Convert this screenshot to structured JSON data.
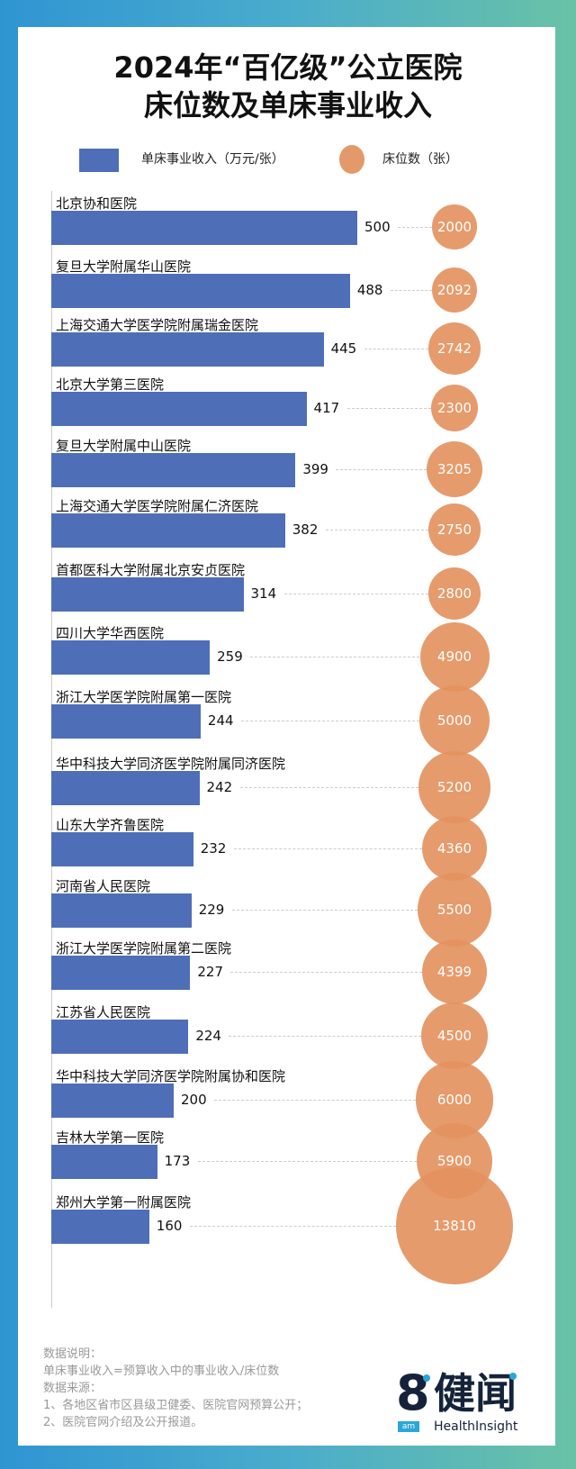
{
  "title": {
    "line1": "2024年“百亿级”公立医院",
    "line2": "床位数及单床事业收入"
  },
  "legend": {
    "bar_label": "单床事业收入（万元/张）",
    "circle_label": "床位数（张）",
    "bar_color": "#4e6fb8",
    "circle_color": "#e4996a"
  },
  "notes": {
    "line1": "数据说明：",
    "line2": "单床事业收入=预算收入中的事业收入/床位数",
    "line3": "数据来源：",
    "line4": "1、各地区省市区县级卫健委、医院官网预算公开；",
    "line5": "2、医院官网介绍及公开报道。"
  },
  "logo": {
    "mark": "8",
    "cn": "健闻",
    "am": "am",
    "en": "HealthInsight"
  },
  "chart_data": {
    "type": "bar",
    "title": "2024年“百亿级”公立医院床位数及单床事业收入",
    "orientation": "horizontal",
    "categories": [
      "北京协和医院",
      "复旦大学附属华山医院",
      "上海交通大学医学院附属瑞金医院",
      "北京大学第三医院",
      "复旦大学附属中山医院",
      "上海交通大学医学院附属仁济医院",
      "首都医科大学附属北京安贞医院",
      "四川大学华西医院",
      "浙江大学医学院附属第一医院",
      "华中科技大学同济医学院附属同济医院",
      "山东大学齐鲁医院",
      "河南省人民医院",
      "浙江大学医学院附属第二医院",
      "江苏省人民医院",
      "华中科技大学同济医学院附属协和医院",
      "吉林大学第一医院",
      "郑州大学第一附属医院"
    ],
    "series": [
      {
        "name": "单床事业收入（万元/张）",
        "type": "bar",
        "values": [
          500,
          488,
          445,
          417,
          399,
          382,
          314,
          259,
          244,
          242,
          232,
          229,
          227,
          224,
          200,
          173,
          160
        ]
      },
      {
        "name": "床位数（张）",
        "type": "bubble",
        "values": [
          2000,
          2092,
          2742,
          2300,
          3205,
          2750,
          2800,
          4900,
          5000,
          5200,
          4360,
          5500,
          4399,
          4500,
          6000,
          5900,
          13810
        ]
      }
    ],
    "legend_position": "top",
    "grid": false
  }
}
